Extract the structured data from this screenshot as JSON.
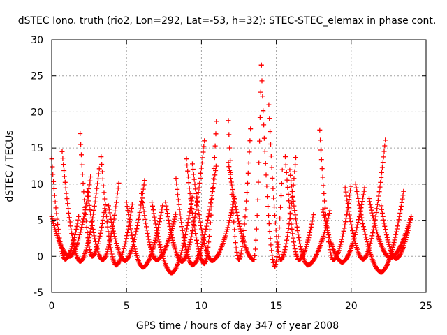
{
  "chart_data": {
    "type": "scatter",
    "title": "dSTEC Iono. truth (rio2, Lon=292, Lat=-53, h=32): STEC-STEC_elemax in phase cont.",
    "xlabel": "GPS time / hours of day 347 of year 2008",
    "ylabel": "dSTEC  / TECUs",
    "xlim": [
      0,
      25
    ],
    "ylim": [
      -5,
      30
    ],
    "xticks": [
      0,
      5,
      10,
      15,
      20,
      25
    ],
    "yticks": [
      -5,
      0,
      5,
      10,
      15,
      20,
      25,
      30
    ],
    "grid": true,
    "marker": "+",
    "color": "#ff0000",
    "passes": [
      {
        "start": 0.0,
        "peak_time": 0.9,
        "end": 1.8,
        "left_max": 13.5,
        "right_max": 5.5,
        "min": -0.4
      },
      {
        "start": 0.0,
        "peak_time": 1.2,
        "end": 2.6,
        "left_max": 5.5,
        "right_max": 11.0,
        "min": 0.0
      },
      {
        "start": 0.7,
        "peak_time": 1.9,
        "end": 3.2,
        "left_max": 14.5,
        "right_max": 12.5,
        "min": -0.7
      },
      {
        "start": 1.9,
        "peak_time": 2.7,
        "end": 3.6,
        "left_max": 17.0,
        "right_max": 7.5,
        "min": 0.0
      },
      {
        "start": 2.4,
        "peak_time": 3.4,
        "end": 4.5,
        "left_max": 9.0,
        "right_max": 10.5,
        "min": -0.5
      },
      {
        "start": 3.3,
        "peak_time": 4.3,
        "end": 5.4,
        "left_max": 13.8,
        "right_max": 7.5,
        "min": -1.2
      },
      {
        "start": 3.8,
        "peak_time": 4.9,
        "end": 6.2,
        "left_max": 7.0,
        "right_max": 10.5,
        "min": -0.6
      },
      {
        "start": 5.0,
        "peak_time": 6.1,
        "end": 7.4,
        "left_max": 7.5,
        "right_max": 7.0,
        "min": -1.5
      },
      {
        "start": 6.0,
        "peak_time": 7.0,
        "end": 8.3,
        "left_max": 8.7,
        "right_max": 6.0,
        "min": -0.5
      },
      {
        "start": 6.7,
        "peak_time": 8.0,
        "end": 9.4,
        "left_max": 7.5,
        "right_max": 8.5,
        "min": -2.3
      },
      {
        "start": 7.6,
        "peak_time": 8.7,
        "end": 10.2,
        "left_max": 7.5,
        "right_max": 16.0,
        "min": -0.7
      },
      {
        "start": 8.3,
        "peak_time": 9.4,
        "end": 11.0,
        "left_max": 10.8,
        "right_max": 12.8,
        "min": -1.2
      },
      {
        "start": 9.0,
        "peak_time": 10.2,
        "end": 11.0,
        "left_max": 13.5,
        "right_max": 18.7,
        "min": -1.0
      },
      {
        "start": 9.4,
        "peak_time": 10.7,
        "end": 12.2,
        "left_max": 12.8,
        "right_max": 8.0,
        "min": -0.6
      },
      {
        "start": 11.8,
        "peak_time": 12.5,
        "end": 13.3,
        "left_max": 18.8,
        "right_max": 18.5,
        "min": -0.5
      },
      {
        "start": 11.8,
        "peak_time": 13.5,
        "end": 14.0,
        "left_max": 13.0,
        "right_max": 26.5,
        "min": -0.5
      },
      {
        "start": 14.0,
        "peak_time": 14.9,
        "end": 15.4,
        "left_max": 26.5,
        "right_max": 12.0,
        "min": -1.4
      },
      {
        "start": 14.5,
        "peak_time": 15.3,
        "end": 16.3,
        "left_max": 21.0,
        "right_max": 13.7,
        "min": -0.5
      },
      {
        "start": 15.6,
        "peak_time": 16.5,
        "end": 17.5,
        "left_max": 13.8,
        "right_max": 6.0,
        "min": -0.5
      },
      {
        "start": 15.9,
        "peak_time": 17.1,
        "end": 18.6,
        "left_max": 12.0,
        "right_max": 6.5,
        "min": -1.2
      },
      {
        "start": 17.9,
        "peak_time": 18.8,
        "end": 20.0,
        "left_max": 17.5,
        "right_max": 10.0,
        "min": -0.5
      },
      {
        "start": 18.1,
        "peak_time": 19.4,
        "end": 20.9,
        "left_max": 6.5,
        "right_max": 9.5,
        "min": -0.8
      },
      {
        "start": 19.6,
        "peak_time": 20.8,
        "end": 22.3,
        "left_max": 9.5,
        "right_max": 16.5,
        "min": -0.4
      },
      {
        "start": 20.3,
        "peak_time": 22.0,
        "end": 23.5,
        "left_max": 10.0,
        "right_max": 9.0,
        "min": -2.2
      },
      {
        "start": 21.2,
        "peak_time": 22.6,
        "end": 24.0,
        "left_max": 8.0,
        "right_max": 5.5,
        "min": -0.2
      },
      {
        "start": 22.0,
        "peak_time": 23.0,
        "end": 24.0,
        "left_max": 7.0,
        "right_max": 5.5,
        "min": -0.3
      }
    ]
  }
}
